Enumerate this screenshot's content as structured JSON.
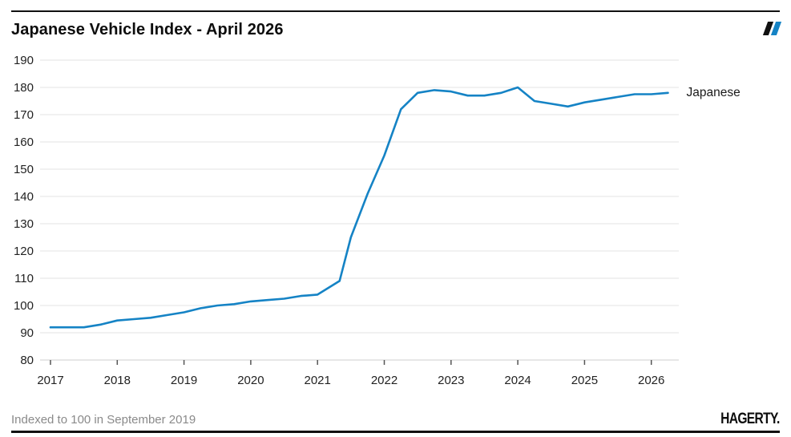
{
  "header": {
    "title": "Japanese Vehicle Index - April 2026"
  },
  "brand_mark": {
    "name": "hagerty-double-slash",
    "colors": [
      "#111111",
      "#1583c5"
    ]
  },
  "footer": {
    "note": "Indexed to 100 in September 2019",
    "logo_text": "HAGERTY."
  },
  "chart_data": {
    "type": "line",
    "title": "Japanese Vehicle Index - April 2026",
    "xlabel": "",
    "ylabel": "",
    "ylim": [
      80,
      190
    ],
    "xlim": [
      2016.85,
      2026.42
    ],
    "grid": "horizontal",
    "gridline_color": "#e3e3e3",
    "axis_line_color": "#cfcfcf",
    "tick_color": "#555555",
    "y_ticks": [
      80,
      90,
      100,
      110,
      120,
      130,
      140,
      150,
      160,
      170,
      180,
      190
    ],
    "x_ticks": [
      2017,
      2018,
      2019,
      2020,
      2021,
      2022,
      2023,
      2024,
      2025,
      2026
    ],
    "note": "Indexed to 100 in September 2019",
    "legend_position": "end-of-line label",
    "series": [
      {
        "name": "Japanese",
        "color": "#1583c5",
        "points": [
          [
            2017.0,
            92
          ],
          [
            2017.25,
            92
          ],
          [
            2017.5,
            92
          ],
          [
            2017.75,
            93
          ],
          [
            2018.0,
            94.5
          ],
          [
            2018.25,
            95
          ],
          [
            2018.5,
            95.5
          ],
          [
            2018.75,
            96.5
          ],
          [
            2019.0,
            97.5
          ],
          [
            2019.25,
            99
          ],
          [
            2019.5,
            100
          ],
          [
            2019.75,
            100.5
          ],
          [
            2020.0,
            101.5
          ],
          [
            2020.25,
            102
          ],
          [
            2020.5,
            102.5
          ],
          [
            2020.75,
            103.5
          ],
          [
            2021.0,
            104
          ],
          [
            2021.33,
            109
          ],
          [
            2021.5,
            125
          ],
          [
            2021.75,
            141
          ],
          [
            2022.0,
            155
          ],
          [
            2022.25,
            172
          ],
          [
            2022.5,
            178
          ],
          [
            2022.75,
            179
          ],
          [
            2023.0,
            178.5
          ],
          [
            2023.25,
            177
          ],
          [
            2023.5,
            177
          ],
          [
            2023.75,
            178
          ],
          [
            2024.0,
            180
          ],
          [
            2024.25,
            175
          ],
          [
            2024.5,
            174
          ],
          [
            2024.75,
            173
          ],
          [
            2025.0,
            174.5
          ],
          [
            2025.25,
            175.5
          ],
          [
            2025.5,
            176.5
          ],
          [
            2025.75,
            177.5
          ],
          [
            2026.0,
            177.5
          ],
          [
            2026.25,
            178
          ]
        ]
      }
    ]
  }
}
